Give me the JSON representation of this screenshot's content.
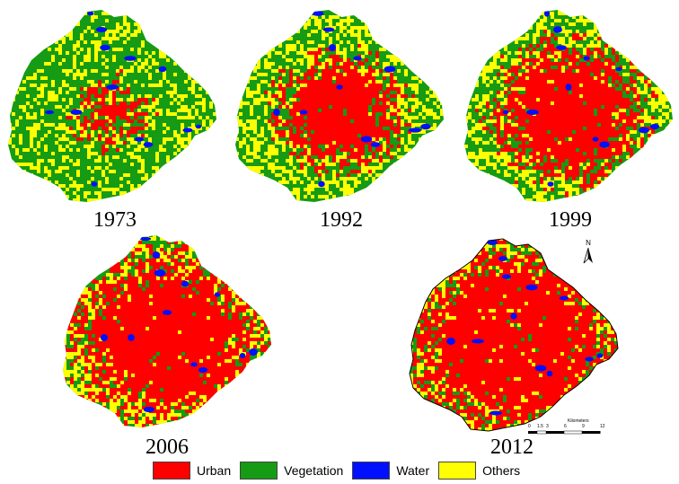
{
  "maps": [
    {
      "year": "1973",
      "urban": 0.06,
      "vegetation": 0.62,
      "water": 0.03,
      "others": 0.29
    },
    {
      "year": "1992",
      "urban": 0.3,
      "vegetation": 0.38,
      "water": 0.02,
      "others": 0.3
    },
    {
      "year": "1999",
      "urban": 0.4,
      "vegetation": 0.32,
      "water": 0.02,
      "others": 0.26
    },
    {
      "year": "2006",
      "urban": 0.55,
      "vegetation": 0.18,
      "water": 0.02,
      "others": 0.25
    },
    {
      "year": "2012",
      "urban": 0.62,
      "vegetation": 0.16,
      "water": 0.02,
      "others": 0.2
    }
  ],
  "legend": [
    {
      "label": "Urban",
      "color": "#ff0000"
    },
    {
      "label": "Vegetation",
      "color": "#159b14"
    },
    {
      "label": "Water",
      "color": "#0010ff"
    },
    {
      "label": "Others",
      "color": "#ffff00"
    }
  ],
  "north_arrow": {
    "label": "N"
  },
  "scale_bar": {
    "unit": "Kilometers",
    "ticks": [
      "0",
      "1.5",
      "3",
      "6",
      "9",
      "12"
    ]
  }
}
